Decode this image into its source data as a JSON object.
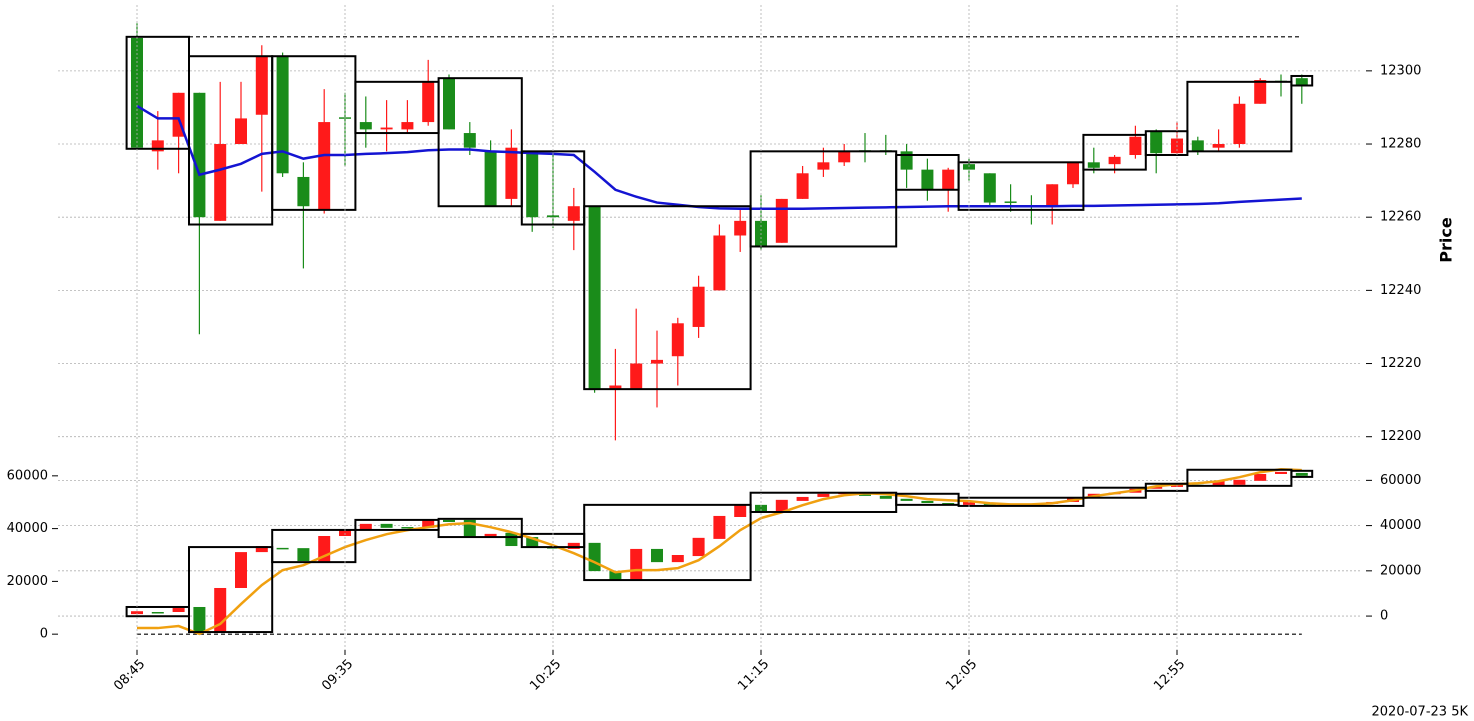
{
  "chart_data": [
    {
      "type": "candlestick",
      "ylabel": "Price",
      "up_color": "#ff1a1a",
      "down_color": "#1a8c1a",
      "open": [
        12309,
        12278,
        12282,
        12294,
        12259,
        12280,
        12288,
        12304,
        12271,
        12262,
        12287.3,
        12286,
        12284,
        12284,
        12286,
        12298,
        12283,
        12278,
        12265,
        12278,
        12260.5,
        12259,
        12263,
        12213,
        12213,
        12220,
        12222,
        12230,
        12240,
        12255,
        12259,
        12253,
        12265,
        12273,
        12275,
        12278.3,
        12278.3,
        12278,
        12273,
        12267.5,
        12274.5,
        12272,
        12264.3,
        12263.3,
        12263,
        12269,
        12275,
        12274.5,
        12277,
        12283.5,
        12277.5,
        12281,
        12279,
        12280,
        12291,
        12297.3,
        12298
      ],
      "high": [
        12313,
        12289,
        12294,
        12294,
        12297,
        12297,
        12307,
        12305,
        12275,
        12295,
        12294,
        12293,
        12292,
        12292,
        12303,
        12299,
        12286,
        12281,
        12284,
        12278,
        12277,
        12268,
        12263,
        12224,
        12235,
        12229,
        12232.5,
        12244,
        12258,
        12262.5,
        12266,
        12265,
        12274,
        12279,
        12280,
        12283,
        12282.5,
        12280,
        12276,
        12273.5,
        12276,
        12272,
        12269,
        12266,
        12269,
        12275,
        12279,
        12277,
        12285,
        12284,
        12286,
        12282,
        12284,
        12293,
        12298,
        12299,
        12299
      ],
      "low": [
        12279,
        12273,
        12272,
        12228,
        12259,
        12280,
        12267,
        12271,
        12246,
        12261,
        12274,
        12279,
        12278,
        12283,
        12285,
        12284,
        12277,
        12263,
        12263,
        12256,
        12257,
        12251,
        12212,
        12199,
        12213,
        12208,
        12214,
        12227,
        12240,
        12250.5,
        12251,
        12253,
        12265,
        12271,
        12274,
        12275,
        12277,
        12268,
        12264.5,
        12261.5,
        12270,
        12263,
        12261.5,
        12258,
        12258,
        12268,
        12272,
        12272,
        12276,
        12272,
        12277,
        12277,
        12278,
        12279,
        12291,
        12293,
        12291
      ],
      "close": [
        12279,
        12281,
        12294,
        12260,
        12280,
        12287,
        12304,
        12272,
        12263,
        12286,
        12287,
        12284,
        12284.5,
        12286,
        12297,
        12284,
        12279,
        12263,
        12279,
        12260,
        12260,
        12263,
        12213,
        12214,
        12220,
        12221,
        12231,
        12241,
        12255,
        12259,
        12252,
        12265,
        12272,
        12275,
        12278,
        12278,
        12278,
        12273,
        12267.5,
        12273,
        12273,
        12264,
        12264,
        12263,
        12269,
        12275,
        12273.5,
        12276.5,
        12282,
        12277.5,
        12281.5,
        12278,
        12280,
        12291,
        12297.5,
        12297,
        12296
      ],
      "line": {
        "color": "#1414d2",
        "values": [
          12290.4,
          12287,
          12287,
          12271.6,
          12273,
          12274.6,
          12277.3,
          12278,
          12276,
          12277,
          12277,
          12277.3,
          12277.5,
          12277.8,
          12278.3,
          12278.5,
          12278.5,
          12278,
          12277.8,
          12277.5,
          12277.3,
          12277,
          12272.4,
          12267.5,
          12265.6,
          12264,
          12263.4,
          12262.8,
          12262.4,
          12262.3,
          12262.3,
          12262.3,
          12262.3,
          12262.4,
          12262.5,
          12262.6,
          12262.7,
          12262.8,
          12262.9,
          12263,
          12263,
          12263,
          12263,
          12263,
          12263,
          12263.1,
          12263.1,
          12263.2,
          12263.3,
          12263.4,
          12263.5,
          12263.6,
          12263.8,
          12264.2,
          12264.5,
          12264.8,
          12265.1
        ]
      },
      "boxes": [
        {
          "from": 0,
          "to": 2,
          "high": 12309.3,
          "low": 12278.7
        },
        {
          "from": 3,
          "to": 6,
          "high": 12304,
          "low": 12258
        },
        {
          "from": 7,
          "to": 10,
          "high": 12304,
          "low": 12262
        },
        {
          "from": 11,
          "to": 14,
          "high": 12297,
          "low": 12283
        },
        {
          "from": 15,
          "to": 18,
          "high": 12298,
          "low": 12263
        },
        {
          "from": 19,
          "to": 21,
          "high": 12278,
          "low": 12258
        },
        {
          "from": 22,
          "to": 29,
          "high": 12263,
          "low": 12213
        },
        {
          "from": 30,
          "to": 36,
          "high": 12278,
          "low": 12252
        },
        {
          "from": 37,
          "to": 39,
          "high": 12277,
          "low": 12267.5
        },
        {
          "from": 40,
          "to": 45,
          "high": 12275,
          "low": 12262
        },
        {
          "from": 46,
          "to": 48,
          "high": 12282.5,
          "low": 12273
        },
        {
          "from": 49,
          "to": 50,
          "high": 12283.5,
          "low": 12277
        },
        {
          "from": 51,
          "to": 55,
          "high": 12297,
          "low": 12278
        },
        {
          "from": 56,
          "to": 56,
          "high": 12298.6,
          "low": 12296
        }
      ],
      "hline": 12309.3,
      "ylim": [
        12195,
        12318
      ],
      "yticks": [
        12200,
        12220,
        12240,
        12260,
        12280,
        12300
      ],
      "grid": true
    },
    {
      "type": "candlestick",
      "up_color": "#ff1a1a",
      "down_color": "#1a8c1a",
      "categories": [
        "08:45",
        null,
        null,
        null,
        null,
        null,
        null,
        null,
        null,
        null,
        "09:35",
        null,
        null,
        null,
        null,
        null,
        null,
        null,
        null,
        null,
        "10:25",
        null,
        null,
        null,
        null,
        null,
        null,
        null,
        null,
        null,
        "11:15",
        null,
        null,
        null,
        null,
        null,
        null,
        null,
        null,
        null,
        "12:05",
        null,
        null,
        null,
        null,
        null,
        null,
        null,
        null,
        null,
        "12:55",
        null,
        null,
        null,
        null,
        null,
        null
      ],
      "open": [
        7600,
        8400,
        8400,
        10300,
        800,
        17500,
        31100,
        32700,
        32600,
        27000,
        37200,
        39500,
        41800,
        40600,
        40300,
        43300,
        43300,
        36800,
        38400,
        36800,
        33000,
        32300,
        34600,
        23900,
        20500,
        32300,
        27300,
        29600,
        36100,
        44400,
        49000,
        46300,
        50500,
        52000,
        53200,
        53200,
        52400,
        51300,
        50500,
        49700,
        49000,
        49800,
        49300,
        49200,
        49400,
        50100,
        51700,
        53200,
        53600,
        55100,
        55800,
        56600,
        56200,
        56600,
        58100,
        60700,
        61100
      ],
      "close": [
        8700,
        8300,
        9900,
        800,
        17500,
        31100,
        33400,
        32500,
        27700,
        37200,
        39500,
        41800,
        40300,
        40300,
        43300,
        42500,
        36800,
        38000,
        33400,
        33000,
        32600,
        34600,
        23900,
        20500,
        32300,
        27300,
        30000,
        36500,
        44800,
        49000,
        46300,
        50900,
        52000,
        53200,
        53600,
        52400,
        51300,
        50500,
        49700,
        49000,
        50100,
        49000,
        49000,
        49000,
        50100,
        51700,
        53200,
        53600,
        55100,
        55800,
        56600,
        56200,
        58100,
        58500,
        60700,
        61500,
        60000
      ],
      "line": {
        "color": "#f0a010",
        "axis": "y2",
        "values": [
          -5300,
          -5300,
          -4400,
          -7900,
          -3500,
          5300,
          13700,
          20300,
          22500,
          26500,
          30500,
          33600,
          36200,
          38000,
          39300,
          40600,
          41100,
          39300,
          37100,
          34400,
          31300,
          27800,
          23800,
          19400,
          20300,
          20300,
          21200,
          24700,
          30900,
          38000,
          43300,
          45900,
          49000,
          51700,
          53400,
          54300,
          53900,
          53000,
          51700,
          51200,
          50800,
          49900,
          49400,
          49400,
          49900,
          51200,
          53000,
          54300,
          55600,
          57400,
          58300,
          58700,
          59600,
          61400,
          63600,
          64900,
          64500
        ]
      },
      "boxes": [
        {
          "from": 0,
          "to": 2,
          "high": 10300,
          "low": 6800
        },
        {
          "from": 3,
          "to": 6,
          "high": 33000,
          "low": 800
        },
        {
          "from": 7,
          "to": 10,
          "high": 39500,
          "low": 27300
        },
        {
          "from": 11,
          "to": 14,
          "high": 43300,
          "low": 39500
        },
        {
          "from": 15,
          "to": 18,
          "high": 43700,
          "low": 36800
        },
        {
          "from": 19,
          "to": 21,
          "high": 38000,
          "low": 33000
        },
        {
          "from": 22,
          "to": 29,
          "high": 49000,
          "low": 20500
        },
        {
          "from": 30,
          "to": 36,
          "high": 53600,
          "low": 46300
        },
        {
          "from": 37,
          "to": 39,
          "high": 53200,
          "low": 49000
        },
        {
          "from": 40,
          "to": 45,
          "high": 51700,
          "low": 48600
        },
        {
          "from": 46,
          "to": 48,
          "high": 55500,
          "low": 51700
        },
        {
          "from": 49,
          "to": 50,
          "high": 57000,
          "low": 54300
        },
        {
          "from": 51,
          "to": 55,
          "high": 62300,
          "low": 56200
        },
        {
          "from": 56,
          "to": 56,
          "high": 61900,
          "low": 59600
        }
      ],
      "hline": 0,
      "ylim": [
        -6000,
        66000
      ],
      "yticks": [
        0,
        20000,
        40000,
        60000
      ],
      "y2lim": [
        -15000,
        69000
      ],
      "y2ticks": [
        0,
        20000,
        40000,
        60000
      ],
      "grid": true
    }
  ],
  "footer": "2020-07-23 5K"
}
